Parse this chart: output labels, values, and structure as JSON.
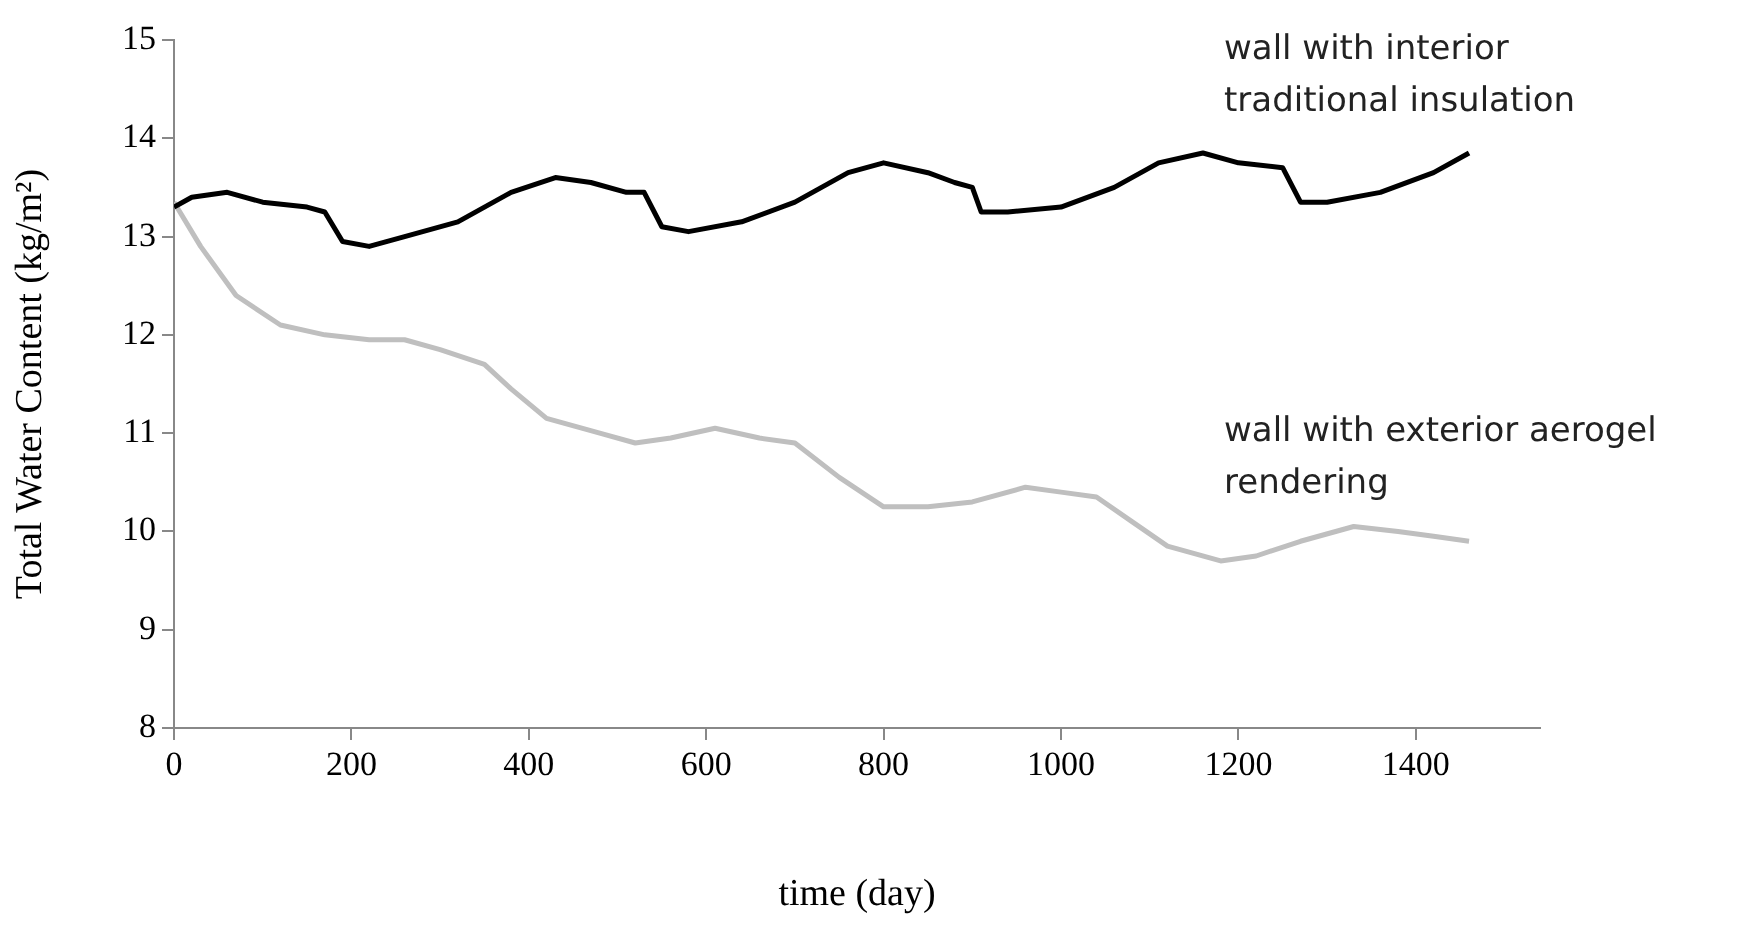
{
  "chart_data": {
    "type": "line",
    "xlabel": "time (day)",
    "ylabel": "Total Water Content (kg/m²)",
    "xlim": [
      0,
      1540
    ],
    "xticks": [
      0,
      200,
      400,
      600,
      800,
      1000,
      1200,
      1400
    ],
    "ylim": [
      8,
      15
    ],
    "yticks": [
      8,
      9,
      10,
      11,
      12,
      13,
      14,
      15
    ],
    "grid": false,
    "legend": false,
    "marker": "none",
    "line_style": "solid",
    "series": [
      {
        "name": "wall with interior traditional insulation",
        "color": "#000000",
        "x": [
          0,
          20,
          60,
          100,
          150,
          170,
          190,
          220,
          260,
          320,
          380,
          430,
          470,
          510,
          530,
          550,
          580,
          640,
          700,
          760,
          800,
          850,
          880,
          900,
          910,
          940,
          1000,
          1060,
          1110,
          1160,
          1200,
          1250,
          1270,
          1300,
          1360,
          1420,
          1460
        ],
        "values": [
          13.3,
          13.4,
          13.45,
          13.35,
          13.3,
          13.25,
          12.95,
          12.9,
          13.0,
          13.15,
          13.45,
          13.6,
          13.55,
          13.45,
          13.45,
          13.1,
          13.05,
          13.15,
          13.35,
          13.65,
          13.75,
          13.65,
          13.55,
          13.5,
          13.25,
          13.25,
          13.3,
          13.5,
          13.75,
          13.85,
          13.75,
          13.7,
          13.35,
          13.35,
          13.45,
          13.65,
          13.85
        ]
      },
      {
        "name": "wall with exterior aerogel rendering",
        "color": "#bfbfbf",
        "x": [
          0,
          30,
          70,
          120,
          170,
          220,
          260,
          300,
          350,
          380,
          420,
          480,
          520,
          560,
          610,
          660,
          700,
          750,
          800,
          850,
          900,
          960,
          1000,
          1040,
          1080,
          1120,
          1180,
          1220,
          1270,
          1330,
          1380,
          1420,
          1460
        ],
        "values": [
          13.35,
          12.9,
          12.4,
          12.1,
          12.0,
          11.95,
          11.95,
          11.85,
          11.7,
          11.45,
          11.15,
          11.0,
          10.9,
          10.95,
          11.05,
          10.95,
          10.9,
          10.55,
          10.25,
          10.25,
          10.3,
          10.45,
          10.4,
          10.35,
          10.1,
          9.85,
          9.7,
          9.75,
          9.9,
          10.05,
          10.0,
          9.95,
          9.9
        ]
      }
    ]
  }
}
